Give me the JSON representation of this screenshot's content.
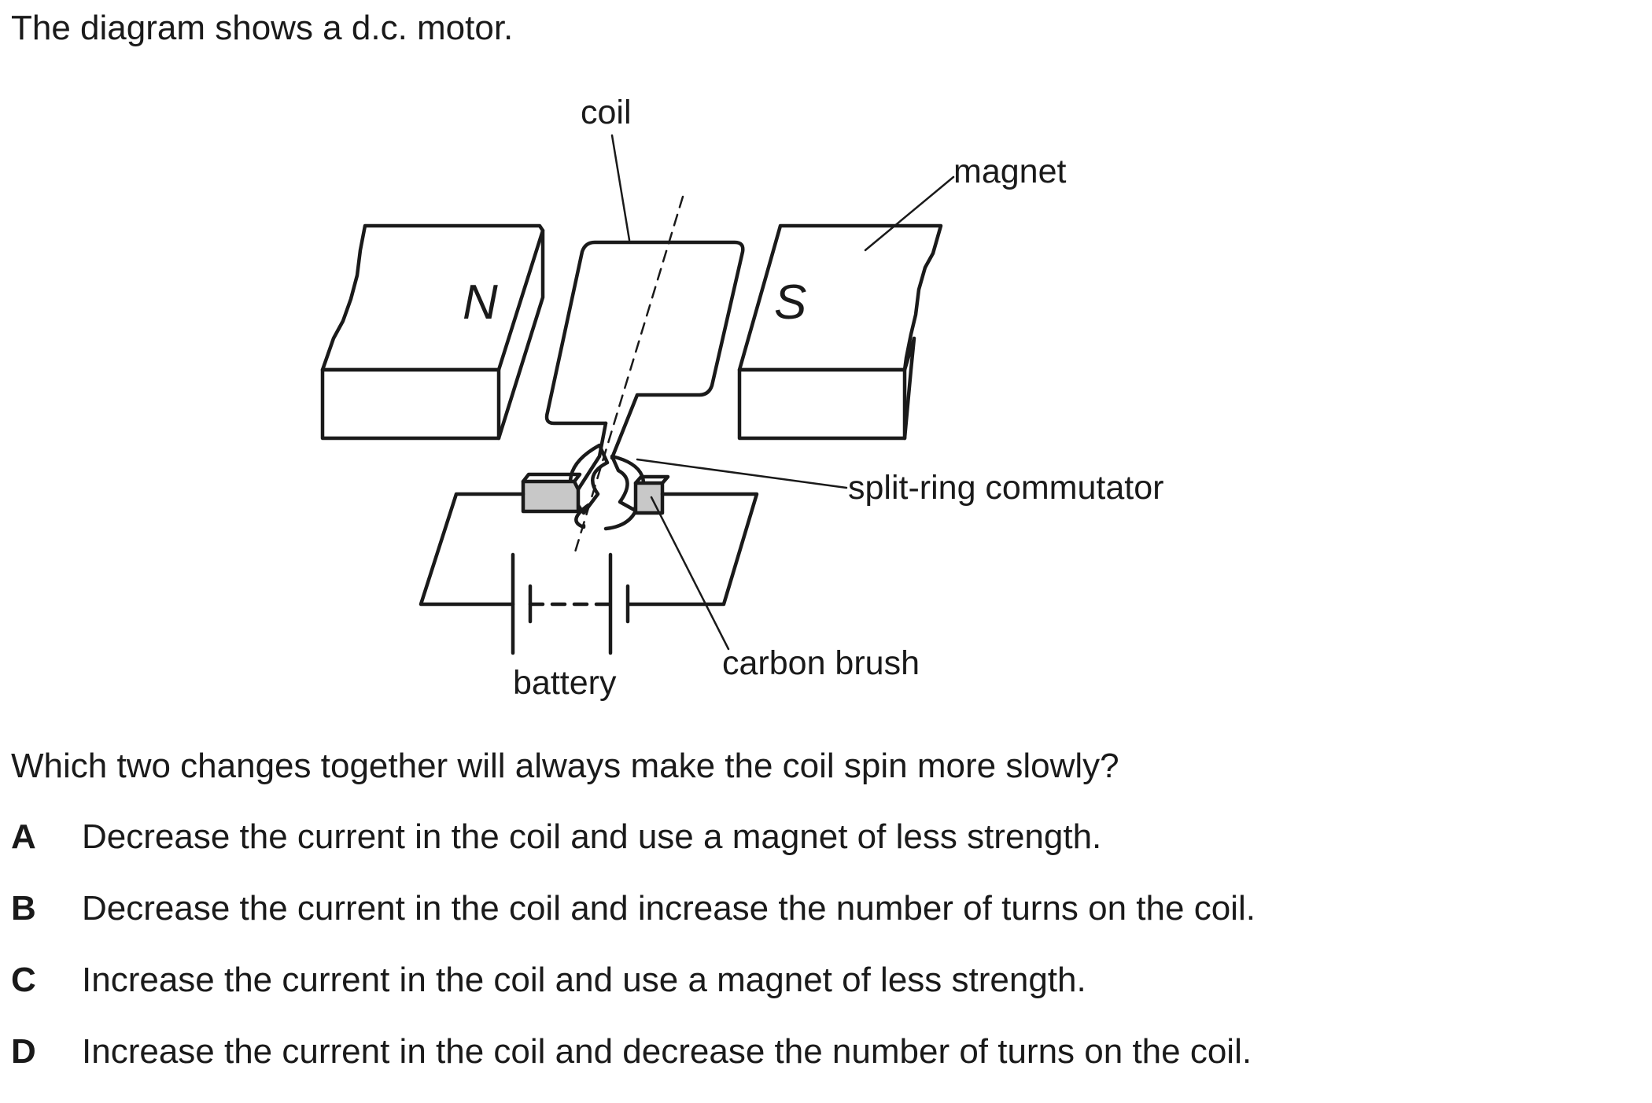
{
  "intro": "The diagram shows a d.c. motor.",
  "diagram": {
    "labels": {
      "coil": "coil",
      "magnet": "magnet",
      "north": "N",
      "south": "S",
      "commutator": "split-ring commutator",
      "brush": "carbon brush",
      "battery": "battery"
    }
  },
  "question": "Which two changes together will always make the coil spin more slowly?",
  "options": [
    {
      "letter": "A",
      "text": "Decrease the current in the coil and use a magnet of less strength."
    },
    {
      "letter": "B",
      "text": "Decrease the current in the coil and increase the number of turns on the coil."
    },
    {
      "letter": "C",
      "text": "Increase the current in the coil and use a magnet of less strength."
    },
    {
      "letter": "D",
      "text": "Increase the current in the coil and decrease the number of turns on the coil."
    }
  ]
}
